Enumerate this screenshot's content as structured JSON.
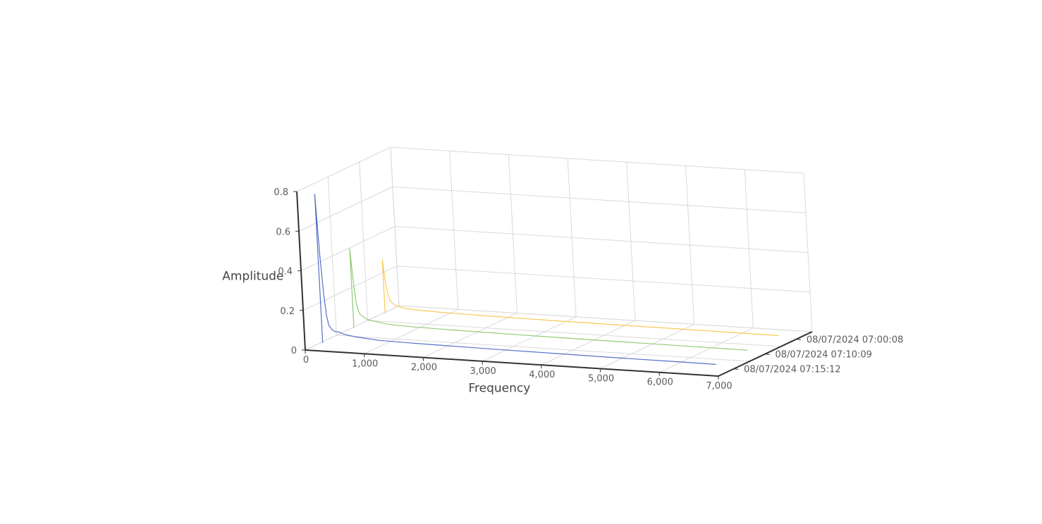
{
  "chart_data": {
    "type": "line",
    "title": "",
    "xlabel": "Frequency",
    "ylabel": "Amplitude",
    "zlabel": "",
    "xlim": [
      0,
      7000
    ],
    "ylim": [
      0,
      0.8
    ],
    "x_ticks": [
      "0",
      "1,000",
      "2,000",
      "3,000",
      "4,000",
      "5,000",
      "6,000",
      "7,000"
    ],
    "y_ticks": [
      "0",
      "0.2",
      "0.4",
      "0.6",
      "0.8"
    ],
    "z_categories": [
      "08/07/2024 07:00:08",
      "08/07/2024 07:10:09",
      "08/07/2024 07:15:12"
    ],
    "grid": true,
    "series": [
      {
        "name": "08/07/2024 07:15:12",
        "color": "#5470c6",
        "x": [
          30,
          60,
          90,
          120,
          150,
          200,
          250,
          300,
          400,
          500,
          600,
          800,
          1000,
          1500,
          2000,
          3000,
          4000,
          5000,
          6000,
          6700
        ],
        "y": [
          0.75,
          0.45,
          0.25,
          0.14,
          0.09,
          0.07,
          0.06,
          0.06,
          0.05,
          0.045,
          0.04,
          0.035,
          0.03,
          0.027,
          0.025,
          0.022,
          0.02,
          0.018,
          0.017,
          0.016
        ]
      },
      {
        "name": "08/07/2024 07:10:09",
        "color": "#91cc75",
        "x": [
          30,
          60,
          90,
          120,
          150,
          200,
          250,
          300,
          400,
          500,
          600,
          800,
          1000,
          1500,
          2000,
          3000,
          4000,
          5000,
          6000,
          6700
        ],
        "y": [
          0.4,
          0.24,
          0.13,
          0.09,
          0.07,
          0.06,
          0.05,
          0.045,
          0.04,
          0.035,
          0.03,
          0.027,
          0.025,
          0.022,
          0.02,
          0.018,
          0.016,
          0.015,
          0.014,
          0.013
        ]
      },
      {
        "name": "08/07/2024 07:00:08",
        "color": "#fac858",
        "x": [
          30,
          60,
          90,
          120,
          150,
          200,
          250,
          300,
          400,
          500,
          600,
          800,
          1000,
          1500,
          2000,
          3000,
          4000,
          5000,
          6000,
          6700
        ],
        "y": [
          0.27,
          0.16,
          0.1,
          0.07,
          0.055,
          0.045,
          0.04,
          0.035,
          0.03,
          0.028,
          0.026,
          0.024,
          0.022,
          0.02,
          0.018,
          0.016,
          0.015,
          0.014,
          0.013,
          0.012
        ]
      }
    ]
  }
}
